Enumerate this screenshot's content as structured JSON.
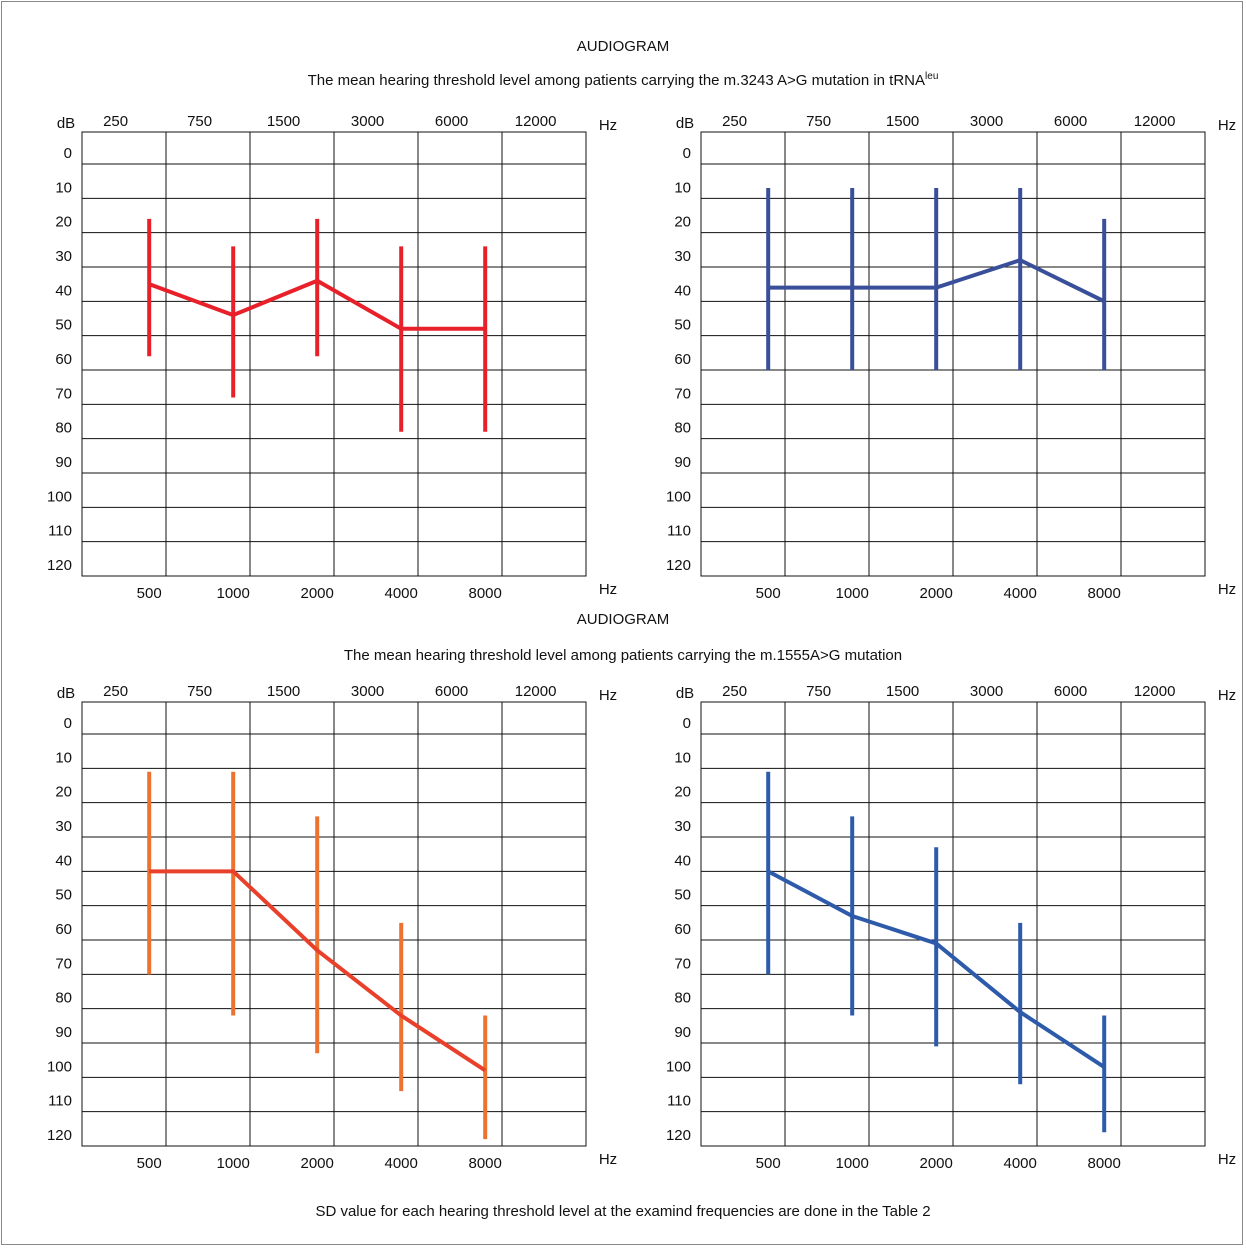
{
  "sections": [
    {
      "title": "AUDIOGRAM",
      "subtitle": "The mean hearing threshold level among patients carrying the m.3243 A>G mutation in tRNA",
      "subtitle_sup": "leu"
    },
    {
      "title": "AUDIOGRAM",
      "subtitle": "The mean hearing threshold level among patients carrying the m.1555A>G mutation",
      "subtitle_sup": ""
    }
  ],
  "footnote": "SD value for each hearing threshold level at the examind frequencies are done in the Table 2",
  "axis": {
    "y_label": "dB",
    "y_ticks": [
      "0",
      "10",
      "20",
      "30",
      "40",
      "50",
      "60",
      "70",
      "80",
      "90",
      "100",
      "110",
      "120"
    ],
    "top_ticks": [
      "250",
      "750",
      "1500",
      "3000",
      "6000",
      "12000"
    ],
    "bottom_ticks": [
      "500",
      "1000",
      "2000",
      "4000",
      "8000"
    ],
    "x_unit": "Hz"
  },
  "chart_data": [
    {
      "type": "line",
      "color": "#e8202a",
      "x": [
        "500",
        "1000",
        "2000",
        "4000",
        "8000"
      ],
      "values": [
        35,
        44,
        34,
        48,
        48
      ],
      "sd_low": [
        16,
        24,
        16,
        24,
        24
      ],
      "sd_high": [
        56,
        68,
        56,
        78,
        78
      ],
      "ylim": [
        0,
        120
      ]
    },
    {
      "type": "line",
      "color": "#3a4f9a",
      "x": [
        "500",
        "1000",
        "2000",
        "4000",
        "8000"
      ],
      "values": [
        36,
        36,
        36,
        28,
        40
      ],
      "sd_low": [
        7,
        7,
        7,
        7,
        16
      ],
      "sd_high": [
        60,
        60,
        60,
        60,
        60
      ],
      "ylim": [
        0,
        120
      ]
    },
    {
      "type": "line",
      "color": "#ed7230",
      "line_color": "#e8402a",
      "x": [
        "500",
        "1000",
        "2000",
        "4000",
        "8000"
      ],
      "values": [
        40,
        40,
        63,
        82,
        98
      ],
      "sd_low": [
        11,
        11,
        24,
        55,
        82
      ],
      "sd_high": [
        70,
        82,
        93,
        104,
        118
      ],
      "ylim": [
        0,
        120
      ]
    },
    {
      "type": "line",
      "color": "#2d5baa",
      "x": [
        "500",
        "1000",
        "2000",
        "4000",
        "8000"
      ],
      "values": [
        40,
        53,
        61,
        81,
        97
      ],
      "sd_low": [
        11,
        24,
        33,
        55,
        82
      ],
      "sd_high": [
        70,
        82,
        91,
        102,
        116
      ],
      "ylim": [
        0,
        120
      ]
    }
  ]
}
